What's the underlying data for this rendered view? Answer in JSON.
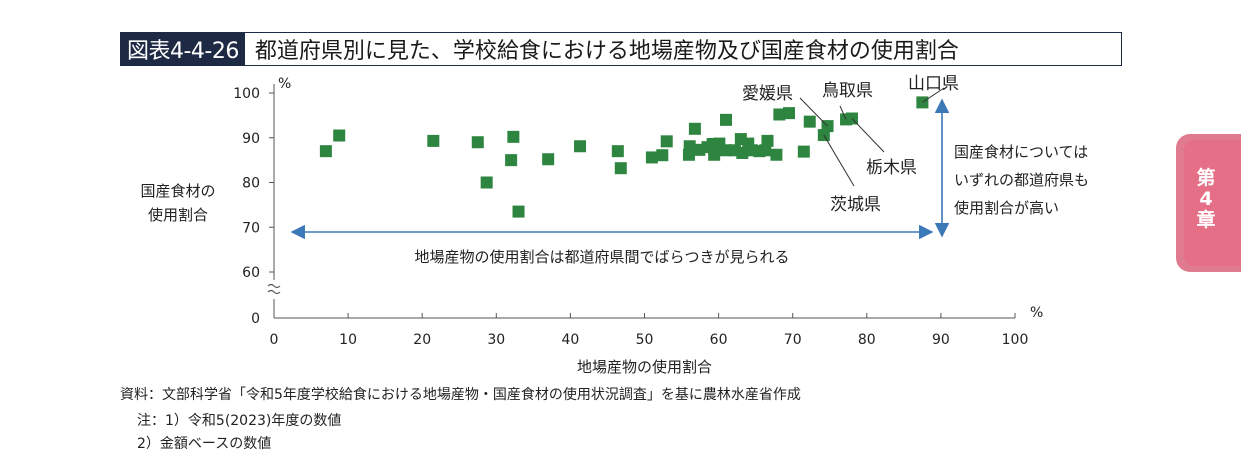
{
  "title": {
    "tag": "図表4-4-26",
    "text": "都道府県別に見た、学校給食における地場産物及び国産食材の使用割合"
  },
  "chapter_tab": {
    "line1": "第",
    "line2": "4",
    "line3": "章"
  },
  "source": "資料：文部科学省「令和5年度学校給食における地場産物・国産食材の使用状況調査」を基に農林水産省作成",
  "notes": [
    "注：1）令和5(2023)年度の数値",
    "2）金額ベースの数値"
  ],
  "annotations": {
    "horizontal": "地場産物の使用割合は都道府県間でばらつきが見られる",
    "vertical_lines": [
      "国産食材については",
      "いずれの都道府県も",
      "使用割合が高い"
    ],
    "labels": [
      "愛媛県",
      "鳥取県",
      "山口県",
      "栃木県",
      "茨城県"
    ]
  },
  "colors": {
    "marker": "#2e8540",
    "arrow": "#3a78b8",
    "title_tag_bg": "#1e2a44",
    "tab": "#e56f86"
  },
  "chart_data": {
    "type": "scatter",
    "xlabel": "地場産物の使用割合",
    "ylabel_lines": [
      "国産食材の",
      "使用割合"
    ],
    "x_unit": "%",
    "y_unit": "%",
    "xlim": [
      0,
      100
    ],
    "ylim_display": [
      60,
      100
    ],
    "y_axis_break": true,
    "x_ticks": [
      0,
      10,
      20,
      30,
      40,
      50,
      60,
      70,
      80,
      90,
      100
    ],
    "y_ticks": [
      0,
      60,
      70,
      80,
      90,
      100
    ],
    "grid": false,
    "points": [
      [
        7,
        87
      ],
      [
        8.8,
        90.5
      ],
      [
        21.5,
        89.3
      ],
      [
        27.5,
        89
      ],
      [
        28.7,
        80
      ],
      [
        32,
        85
      ],
      [
        32.3,
        90.2
      ],
      [
        33,
        73.5
      ],
      [
        37,
        85.2
      ],
      [
        41.3,
        88.1
      ],
      [
        46.4,
        87
      ],
      [
        46.8,
        83.2
      ],
      [
        51,
        85.6
      ],
      [
        52.4,
        86.1
      ],
      [
        53,
        89.2
      ],
      [
        56,
        86.2
      ],
      [
        56.1,
        88.1
      ],
      [
        56.8,
        92
      ],
      [
        57.4,
        87.3
      ],
      [
        58.5,
        87.9
      ],
      [
        59.2,
        88.6
      ],
      [
        59.4,
        86.2
      ],
      [
        60.1,
        88.7
      ],
      [
        61,
        87.2
      ],
      [
        61,
        94
      ],
      [
        62.2,
        87.2
      ],
      [
        63,
        89.7
      ],
      [
        63.2,
        86.6
      ],
      [
        64,
        88.7
      ],
      [
        64.5,
        87.2
      ],
      [
        65.5,
        87
      ],
      [
        66.3,
        87.2
      ],
      [
        66.6,
        89.3
      ],
      [
        67.8,
        86.2
      ],
      [
        68.2,
        95.2
      ],
      [
        69.5,
        95.5
      ],
      [
        71.5,
        86.9
      ],
      [
        72.3,
        93.6
      ],
      [
        74.2,
        90.6
      ],
      [
        74.7,
        92.6
      ],
      [
        77.2,
        94.1
      ],
      [
        78,
        94.3
      ],
      [
        87.5,
        97.9
      ]
    ],
    "labeled_points": [
      {
        "label": "愛媛県",
        "x": 74.7,
        "y": 92.6
      },
      {
        "label": "鳥取県",
        "x": 77.2,
        "y": 94.1
      },
      {
        "label": "山口県",
        "x": 87.5,
        "y": 97.9
      },
      {
        "label": "栃木県",
        "x": 78,
        "y": 94.3
      },
      {
        "label": "茨城県",
        "x": 74.2,
        "y": 90.6
      }
    ]
  }
}
